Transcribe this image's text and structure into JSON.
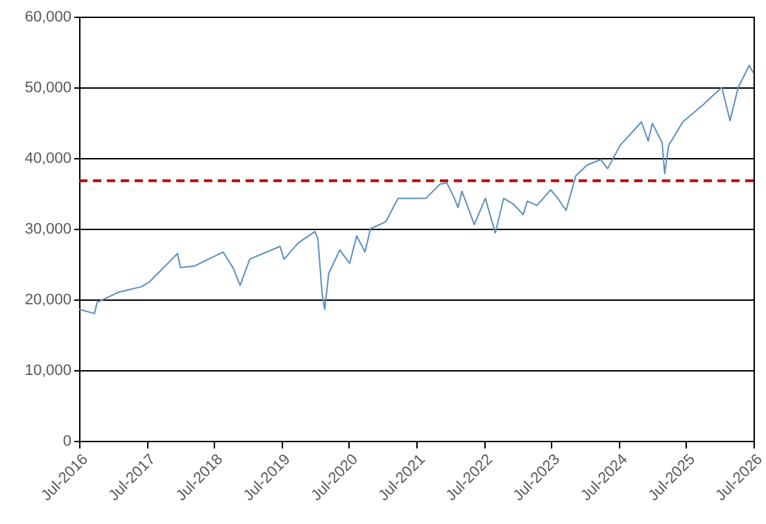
{
  "chart_data": {
    "type": "line",
    "x": [
      "2016-07-01",
      "2016-09-22",
      "2016-10-07",
      "2017-01-28",
      "2017-06-04",
      "2017-07-18",
      "2017-12-16",
      "2018-01-01",
      "2018-03-15",
      "2018-08-20",
      "2018-10-12",
      "2018-11-20",
      "2019-01-11",
      "2019-06-24",
      "2019-07-16",
      "2019-10-01",
      "2019-12-30",
      "2020-01-15",
      "2020-02-07",
      "2020-02-21",
      "2020-03-14",
      "2020-05-13",
      "2020-07-05",
      "2020-08-12",
      "2020-09-26",
      "2020-10-26",
      "2021-01-17",
      "2021-03-24",
      "2021-08-22",
      "2021-11-06",
      "2021-12-13",
      "2022-01-20",
      "2022-02-12",
      "2022-03-05",
      "2022-05-11",
      "2022-07-10",
      "2022-09-02",
      "2022-10-17",
      "2022-12-08",
      "2023-01-31",
      "2023-02-22",
      "2023-04-15",
      "2023-06-29",
      "2023-08-06",
      "2023-09-20",
      "2023-11-12",
      "2024-01-11",
      "2024-03-26",
      "2024-05-02",
      "2024-07-09",
      "2024-11-01",
      "2024-12-08",
      "2024-12-30",
      "2025-02-21",
      "2025-03-07",
      "2025-03-29",
      "2025-06-13",
      "2025-10-04",
      "2026-01-10",
      "2026-02-24",
      "2026-04-09",
      "2026-06-08",
      "2026-07-01"
    ],
    "series": [
      {
        "color": "#5b8fc0",
        "values": [
          18600,
          18000,
          19600,
          21000,
          21800,
          22500,
          26500,
          24500,
          24700,
          26700,
          24500,
          22000,
          25700,
          27500,
          25700,
          28000,
          29600,
          28600,
          20800,
          18600,
          23700,
          27000,
          25100,
          29000,
          26700,
          30000,
          31000,
          34300,
          34300,
          36300,
          36500,
          34500,
          33000,
          35300,
          30600,
          34300,
          29400,
          34300,
          33500,
          32000,
          33900,
          33300,
          35500,
          34300,
          32600,
          37500,
          39000,
          39800,
          38500,
          41800,
          45100,
          42400,
          44900,
          42200,
          37800,
          41800,
          45100,
          47600,
          50000,
          45300,
          50000,
          53100,
          52000
        ]
      }
    ],
    "xlim": [
      "2016-07",
      "2026-07"
    ],
    "xticks": [
      {
        "value": "2016-07",
        "label": "Jul-2016"
      },
      {
        "value": "2017-07",
        "label": "Jul-2017"
      },
      {
        "value": "2018-07",
        "label": "Jul-2018"
      },
      {
        "value": "2019-07",
        "label": "Jul-2019"
      },
      {
        "value": "2020-07",
        "label": "Jul-2020"
      },
      {
        "value": "2021-07",
        "label": "Jul-2021"
      },
      {
        "value": "2022-07",
        "label": "Jul-2022"
      },
      {
        "value": "2023-07",
        "label": "Jul-2023"
      },
      {
        "value": "2024-07",
        "label": "Jul-2024"
      },
      {
        "value": "2025-07",
        "label": "Jul-2025"
      },
      {
        "value": "2026-07",
        "label": "Jul-2026"
      }
    ],
    "ylim": [
      0,
      60000
    ],
    "yticks": [
      {
        "value": 0,
        "label": "0"
      },
      {
        "value": 10000,
        "label": "10,000"
      },
      {
        "value": 20000,
        "label": "20,000"
      },
      {
        "value": 30000,
        "label": "30,000"
      },
      {
        "value": 40000,
        "label": "40,000"
      },
      {
        "value": 50000,
        "label": "50,000"
      },
      {
        "value": 60000,
        "label": "60,000"
      }
    ],
    "ref_lines": [
      {
        "axis": "y",
        "value": 36800,
        "color": "#c00000",
        "line_style": "dashed"
      }
    ],
    "grid": "y",
    "marker": "none",
    "line_style": "solid"
  }
}
